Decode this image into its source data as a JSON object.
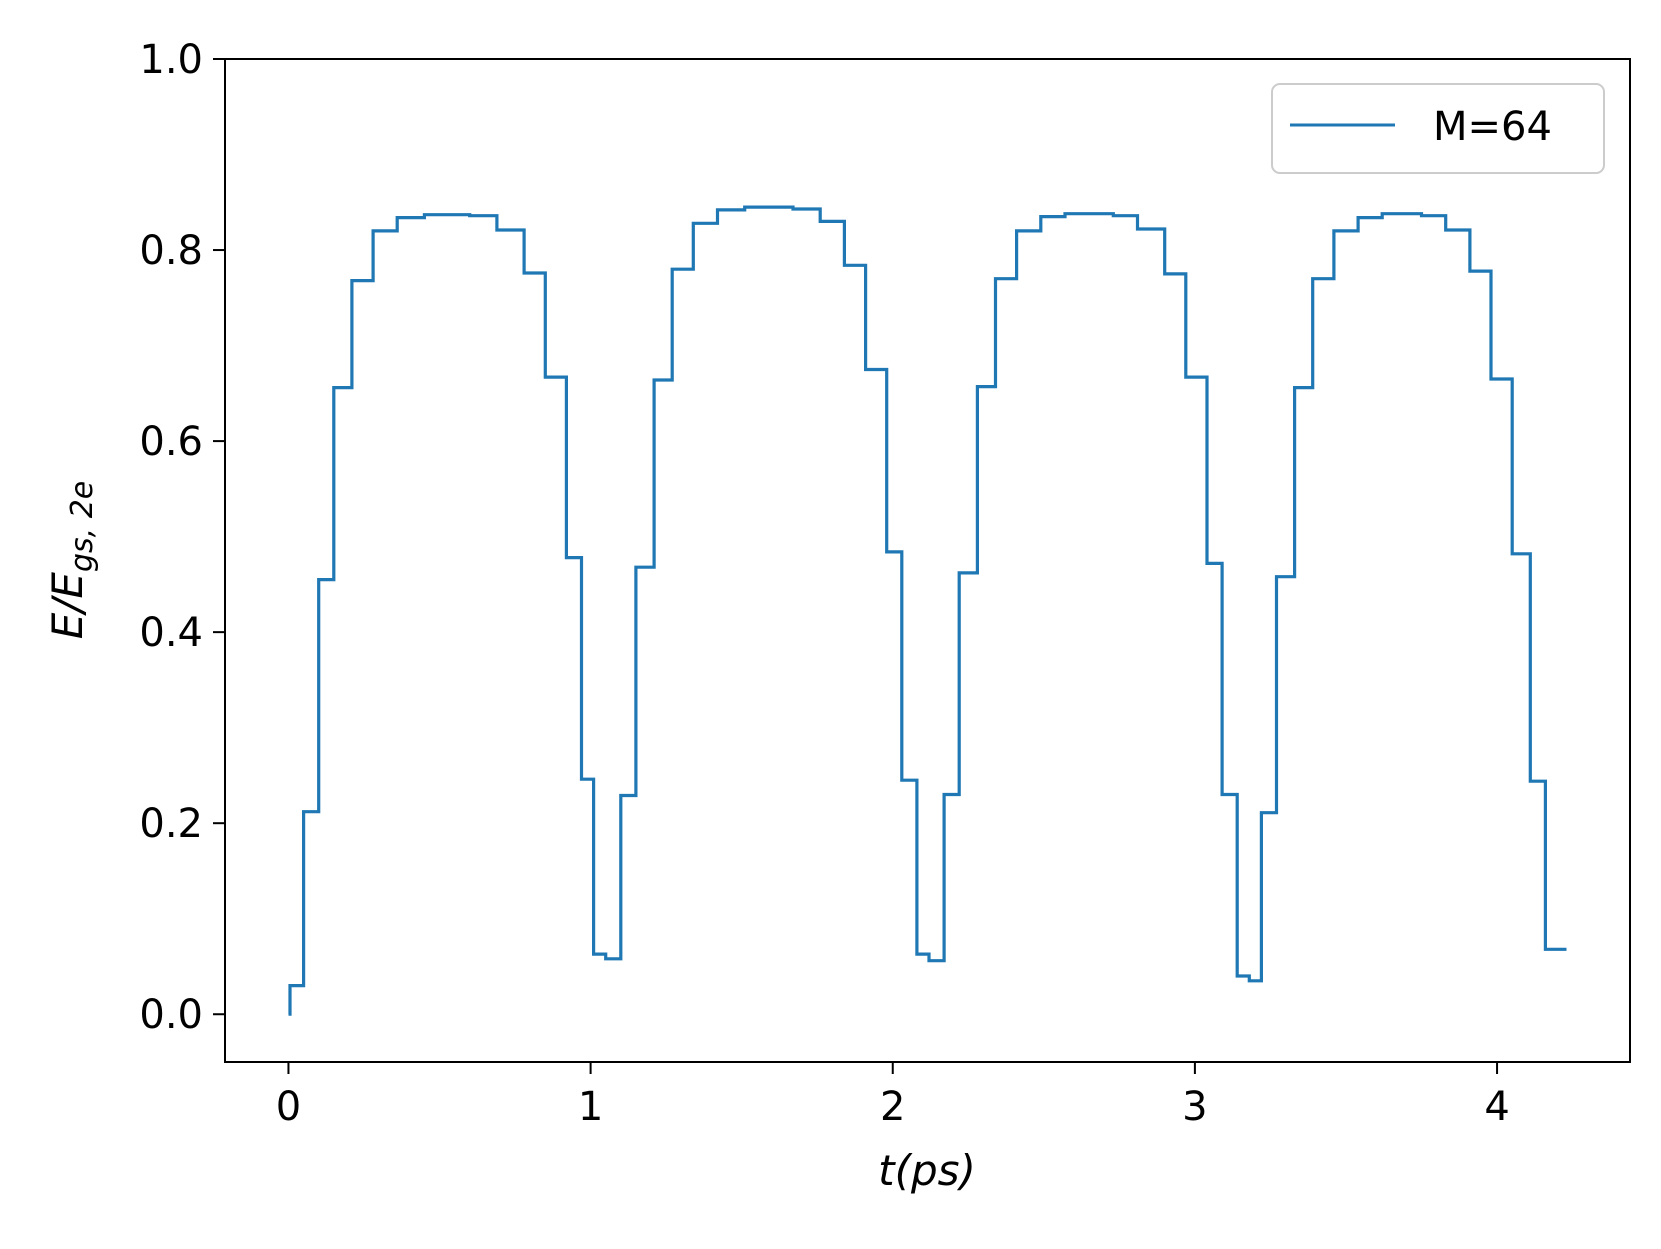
{
  "chart_data": {
    "type": "line",
    "title": "",
    "xlabel": "t(ps)",
    "ylabel_main": "E/E",
    "ylabel_sub": "gs, 2e",
    "xlim": [
      -0.21,
      4.44
    ],
    "ylim": [
      -0.05,
      1.0
    ],
    "xticks": [
      0,
      1,
      2,
      3,
      4
    ],
    "xtick_labels": [
      "0",
      "1",
      "2",
      "3",
      "4"
    ],
    "yticks": [
      0.0,
      0.2,
      0.4,
      0.6,
      0.8,
      1.0
    ],
    "ytick_labels": [
      "0.0",
      "0.2",
      "0.4",
      "0.6",
      "0.8",
      "1.0"
    ],
    "grid": false,
    "legend_position": "top-right",
    "step": "post",
    "series": [
      {
        "name": "M=64",
        "color": "#1f77b4",
        "points": [
          [
            0.0,
            0.0
          ],
          [
            0.005,
            0.03
          ],
          [
            0.05,
            0.212
          ],
          [
            0.1,
            0.455
          ],
          [
            0.15,
            0.656
          ],
          [
            0.21,
            0.768
          ],
          [
            0.28,
            0.82
          ],
          [
            0.36,
            0.834
          ],
          [
            0.45,
            0.837
          ],
          [
            0.6,
            0.836
          ],
          [
            0.69,
            0.821
          ],
          [
            0.78,
            0.776
          ],
          [
            0.85,
            0.667
          ],
          [
            0.92,
            0.478
          ],
          [
            0.97,
            0.246
          ],
          [
            1.01,
            0.063
          ],
          [
            1.05,
            0.058
          ],
          [
            1.1,
            0.229
          ],
          [
            1.15,
            0.468
          ],
          [
            1.21,
            0.664
          ],
          [
            1.27,
            0.78
          ],
          [
            1.34,
            0.828
          ],
          [
            1.42,
            0.842
          ],
          [
            1.51,
            0.845
          ],
          [
            1.67,
            0.843
          ],
          [
            1.76,
            0.83
          ],
          [
            1.84,
            0.784
          ],
          [
            1.91,
            0.675
          ],
          [
            1.98,
            0.484
          ],
          [
            2.03,
            0.245
          ],
          [
            2.08,
            0.063
          ],
          [
            2.12,
            0.056
          ],
          [
            2.17,
            0.23
          ],
          [
            2.22,
            0.462
          ],
          [
            2.28,
            0.657
          ],
          [
            2.34,
            0.77
          ],
          [
            2.41,
            0.82
          ],
          [
            2.49,
            0.835
          ],
          [
            2.57,
            0.838
          ],
          [
            2.73,
            0.836
          ],
          [
            2.81,
            0.822
          ],
          [
            2.9,
            0.775
          ],
          [
            2.97,
            0.667
          ],
          [
            3.04,
            0.472
          ],
          [
            3.09,
            0.23
          ],
          [
            3.14,
            0.04
          ],
          [
            3.18,
            0.035
          ],
          [
            3.22,
            0.211
          ],
          [
            3.27,
            0.458
          ],
          [
            3.33,
            0.656
          ],
          [
            3.39,
            0.77
          ],
          [
            3.46,
            0.82
          ],
          [
            3.54,
            0.834
          ],
          [
            3.62,
            0.838
          ],
          [
            3.75,
            0.836
          ],
          [
            3.83,
            0.821
          ],
          [
            3.91,
            0.778
          ],
          [
            3.98,
            0.665
          ],
          [
            4.05,
            0.482
          ],
          [
            4.11,
            0.244
          ],
          [
            4.16,
            0.068
          ],
          [
            4.23,
            0.068
          ]
        ]
      }
    ]
  }
}
